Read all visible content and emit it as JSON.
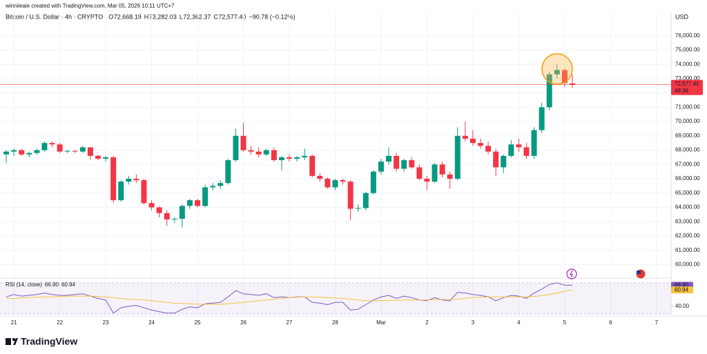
{
  "header": {
    "credit": "winniieaie created with TradingView.com, Mar 05, 2026 10:11 UTC+7",
    "symbol": "Bitcoin / U.S. Dollar · 4h · CRYPTO",
    "ohlc": [
      {
        "key": "O",
        "value": "72,668.19"
      },
      {
        "key": "H",
        "value": "73,282.03"
      },
      {
        "key": "L",
        "value": "72,362.37"
      },
      {
        "key": "C",
        "value": "72,577.40"
      }
    ],
    "change": "−90.78 (−0.12%)"
  },
  "currency": "USD",
  "brand": "TradingView",
  "chart_data": [
    {
      "type": "candlestick",
      "categories": [
        null,
        "21",
        null,
        null,
        null,
        null,
        null,
        "22",
        null,
        null,
        null,
        null,
        null,
        "23",
        null,
        null,
        null,
        null,
        null,
        "24",
        null,
        null,
        null,
        null,
        null,
        "25",
        null,
        null,
        null,
        null,
        null,
        "26",
        null,
        null,
        null,
        null,
        null,
        "27",
        null,
        null,
        null,
        null,
        null,
        "28",
        null,
        null,
        null,
        null,
        null,
        "Mar",
        null,
        null,
        null,
        null,
        null,
        "2",
        null,
        null,
        null,
        null,
        null,
        "3",
        null,
        null,
        null,
        null,
        null,
        "4",
        null,
        null,
        null,
        null,
        null,
        "5",
        null,
        null,
        null,
        null,
        null,
        "6",
        null,
        null,
        null,
        null,
        null,
        "7",
        null
      ],
      "open": [
        67700,
        67900,
        68000,
        67700,
        67800,
        68000,
        68500,
        68400,
        67900,
        67950,
        67900,
        68200,
        67600,
        67400,
        67500,
        64500,
        65800,
        66000,
        65900,
        64300,
        64000,
        63600,
        63150,
        63200,
        64100,
        64500,
        64100,
        65400,
        65500,
        65700,
        67300,
        69000,
        68000,
        67900,
        67700,
        68000,
        67300,
        67500,
        67400,
        67500,
        67600,
        66200,
        66000,
        65400,
        65900,
        65800,
        63900,
        63950,
        65000,
        66500,
        67200,
        67600,
        66700,
        67300,
        66800,
        66000,
        65800,
        67000,
        66300,
        66000,
        69000,
        68800,
        68500,
        68300,
        67900,
        66800,
        67600,
        68400,
        68200,
        67600,
        69400,
        71000,
        73300,
        73600,
        72668.19,
        null,
        null,
        null,
        null,
        null,
        null,
        null,
        null,
        null,
        null,
        null,
        null
      ],
      "high": [
        68000,
        68100,
        68100,
        67900,
        68100,
        68600,
        68600,
        68500,
        68000,
        68000,
        68300,
        68200,
        67700,
        67600,
        67600,
        65900,
        66200,
        66300,
        66000,
        64500,
        64100,
        63800,
        63300,
        64200,
        64600,
        64600,
        65600,
        65700,
        65900,
        67400,
        69500,
        69900,
        68300,
        68200,
        68100,
        68200,
        67600,
        67700,
        67600,
        68100,
        67700,
        66400,
        66100,
        66000,
        66000,
        65900,
        64200,
        65100,
        66600,
        67400,
        68200,
        67800,
        67400,
        67500,
        67000,
        66200,
        67100,
        67200,
        66500,
        69600,
        70000,
        69400,
        68800,
        68600,
        68100,
        67700,
        68700,
        68800,
        68500,
        69600,
        71300,
        73500,
        74000,
        73700,
        73282.03,
        null,
        null,
        null,
        null,
        null,
        null,
        null,
        null,
        null,
        null,
        null,
        null
      ],
      "low": [
        67100,
        67600,
        67600,
        67500,
        67700,
        67900,
        68200,
        67800,
        67800,
        67800,
        67800,
        67300,
        67300,
        67200,
        64300,
        64400,
        65600,
        65700,
        64200,
        63800,
        63300,
        62700,
        62900,
        62600,
        63900,
        64000,
        64000,
        65200,
        65300,
        65600,
        67200,
        67900,
        67700,
        67500,
        67600,
        67200,
        66600,
        67200,
        67200,
        67300,
        66100,
        65800,
        65300,
        65200,
        65600,
        63100,
        63700,
        63800,
        64900,
        66300,
        67000,
        66500,
        66500,
        66700,
        65900,
        65200,
        65700,
        66100,
        65300,
        65900,
        68600,
        68300,
        68100,
        67700,
        66200,
        66400,
        67500,
        67900,
        67400,
        67400,
        69200,
        70800,
        73000,
        72400,
        72362.37,
        null,
        null,
        null,
        null,
        null,
        null,
        null,
        null,
        null,
        null,
        null,
        null
      ],
      "close": [
        67900,
        68000,
        67700,
        67800,
        68000,
        68500,
        68400,
        67900,
        67950,
        67900,
        68200,
        67600,
        67400,
        67500,
        64500,
        65800,
        66000,
        65900,
        64300,
        64000,
        63600,
        63150,
        63200,
        64100,
        64500,
        64100,
        65400,
        65500,
        65700,
        67300,
        69000,
        68000,
        67900,
        67700,
        68000,
        67300,
        67500,
        67400,
        67500,
        67600,
        66200,
        66000,
        65400,
        65900,
        65800,
        63900,
        63950,
        65000,
        66500,
        67200,
        67600,
        66700,
        67300,
        66800,
        66000,
        65800,
        67000,
        66300,
        66000,
        69000,
        68800,
        68500,
        68300,
        67900,
        66800,
        67600,
        68400,
        68200,
        67600,
        69400,
        71000,
        73300,
        73600,
        72700,
        72577.4,
        null,
        null,
        null,
        null,
        null,
        null,
        null,
        null,
        null,
        null,
        null,
        null
      ],
      "up_color": "#089981",
      "down_color": "#f23645",
      "ylim": [
        59200,
        77050
      ],
      "yticks": [
        {
          "value": 60000,
          "label": "60,000.00"
        },
        {
          "value": 61000,
          "label": "61,000.00"
        },
        {
          "value": 62000,
          "label": "62,000.00"
        },
        {
          "value": 63000,
          "label": "63,000.00"
        },
        {
          "value": 64000,
          "label": "64,000.00"
        },
        {
          "value": 65000,
          "label": "65,000.00"
        },
        {
          "value": 66000,
          "label": "66,000.00"
        },
        {
          "value": 67000,
          "label": "67,000.00"
        },
        {
          "value": 68000,
          "label": "68,000.00"
        },
        {
          "value": 69000,
          "label": "69,000.00"
        },
        {
          "value": 70000,
          "label": "70,000.00"
        },
        {
          "value": 71000,
          "label": "71,000.00"
        },
        {
          "value": 72000,
          "label": "72,000.00"
        },
        {
          "value": 73000,
          "label": "73,000.00"
        },
        {
          "value": 74000,
          "label": "74,000.00"
        },
        {
          "value": 75000,
          "label": "75,000.00"
        },
        {
          "value": 76000,
          "label": "76,000.00"
        }
      ],
      "last_price": {
        "value": 72577.4,
        "label": "72,577.40",
        "countdown": "48:36"
      },
      "grid": true
    },
    {
      "type": "line",
      "title": "RSI (14, close)",
      "series": [
        {
          "color": "#7e57c2",
          "last_label": "66.90",
          "values": [
            52,
            55,
            53,
            54,
            55,
            57,
            55,
            54,
            54,
            55,
            56,
            53,
            50,
            48,
            31,
            38,
            40,
            41,
            38,
            35,
            33,
            31,
            31,
            36,
            39,
            38,
            43,
            44,
            45,
            52,
            60,
            56,
            55,
            54,
            56,
            51,
            52,
            51,
            52,
            52,
            45,
            44,
            42,
            45,
            45,
            35,
            36,
            42,
            48,
            52,
            54,
            50,
            53,
            51,
            48,
            47,
            51,
            48,
            47,
            58,
            57,
            55,
            54,
            52,
            47,
            51,
            54,
            53,
            50,
            57,
            62,
            68,
            70,
            67,
            66.9,
            null,
            null,
            null,
            null,
            null,
            null,
            null,
            null,
            null,
            null,
            null,
            null
          ]
        },
        {
          "color": "#f5c242",
          "last_label": "60.94",
          "values": [
            50,
            50,
            50.5,
            51,
            51.5,
            52,
            52,
            52.5,
            53,
            53,
            53,
            53,
            52.5,
            52,
            51,
            50,
            49,
            48.5,
            48,
            47,
            46,
            45,
            44,
            43.5,
            43,
            42.5,
            42.5,
            42.5,
            42.5,
            43,
            44,
            45,
            46,
            47,
            48,
            49,
            50,
            51,
            51.5,
            52,
            52,
            51.5,
            51,
            50.5,
            50,
            49,
            48,
            47,
            47,
            47,
            47.5,
            47.5,
            48,
            48,
            48,
            48,
            48.5,
            48.5,
            48.5,
            49,
            50,
            51,
            51.5,
            52,
            52,
            52,
            52,
            52,
            52,
            52.5,
            53.5,
            55,
            57,
            59,
            60.94,
            null,
            null,
            null,
            null,
            null,
            null,
            null,
            null,
            null,
            null,
            null,
            null
          ]
        }
      ],
      "band": [
        30,
        70
      ],
      "ylim": [
        27.3,
        74.4
      ],
      "yticks": [
        {
          "value": 40,
          "label": "40.00"
        }
      ]
    }
  ]
}
